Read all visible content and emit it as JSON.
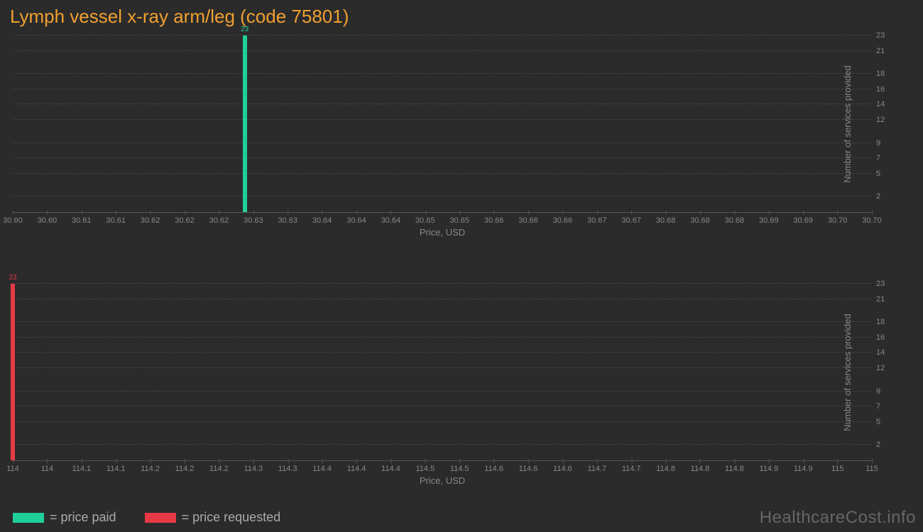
{
  "title": "Lymph vessel x-ray arm/leg (code 75801)",
  "colors": {
    "background": "#2b2b2b",
    "title": "#f0a030",
    "grid": "#444444",
    "axis": "#555555",
    "tick_text": "#888888",
    "series_paid": "#1fcf9a",
    "series_requested": "#e63946",
    "watermark": "#666666"
  },
  "chart_paid": {
    "type": "bar",
    "bar_value": 23,
    "bar_x": 30.627,
    "bar_label": "23",
    "bar_color": "#1fcf9a",
    "xlim": [
      30.6,
      30.7
    ],
    "x_ticks": [
      "30.60",
      "30.60",
      "30.61",
      "30.61",
      "30.62",
      "30.62",
      "30.62",
      "30.63",
      "30.63",
      "30.64",
      "30.64",
      "30.64",
      "30.65",
      "30.65",
      "30.66",
      "30.66",
      "30.66",
      "30.67",
      "30.67",
      "30.68",
      "30.68",
      "30.68",
      "30.69",
      "30.69",
      "30.70",
      "30.70"
    ],
    "x_axis_label": "Price, USD",
    "ylim": [
      0,
      23
    ],
    "y_ticks": [
      2,
      5,
      7,
      9,
      12,
      14,
      16,
      18,
      21,
      23
    ],
    "y_axis_label": "Number of services provided"
  },
  "chart_requested": {
    "type": "bar",
    "bar_value": 23,
    "bar_x": 114.0,
    "bar_label": "23",
    "bar_color": "#e63946",
    "xlim": [
      114,
      115
    ],
    "x_ticks": [
      "114",
      "114",
      "114.1",
      "114.1",
      "114.2",
      "114.2",
      "114.2",
      "114.3",
      "114.3",
      "114.4",
      "114.4",
      "114.4",
      "114.5",
      "114.5",
      "114.6",
      "114.6",
      "114.6",
      "114.7",
      "114.7",
      "114.8",
      "114.8",
      "114.8",
      "114.9",
      "114.9",
      "115",
      "115"
    ],
    "x_axis_label": "Price, USD",
    "ylim": [
      0,
      23
    ],
    "y_ticks": [
      2,
      5,
      7,
      9,
      12,
      14,
      16,
      18,
      21,
      23
    ],
    "y_axis_label": "Number of services provided"
  },
  "legend": {
    "paid": "= price paid",
    "requested": "= price requested"
  },
  "watermark": "HealthcareCost.info"
}
